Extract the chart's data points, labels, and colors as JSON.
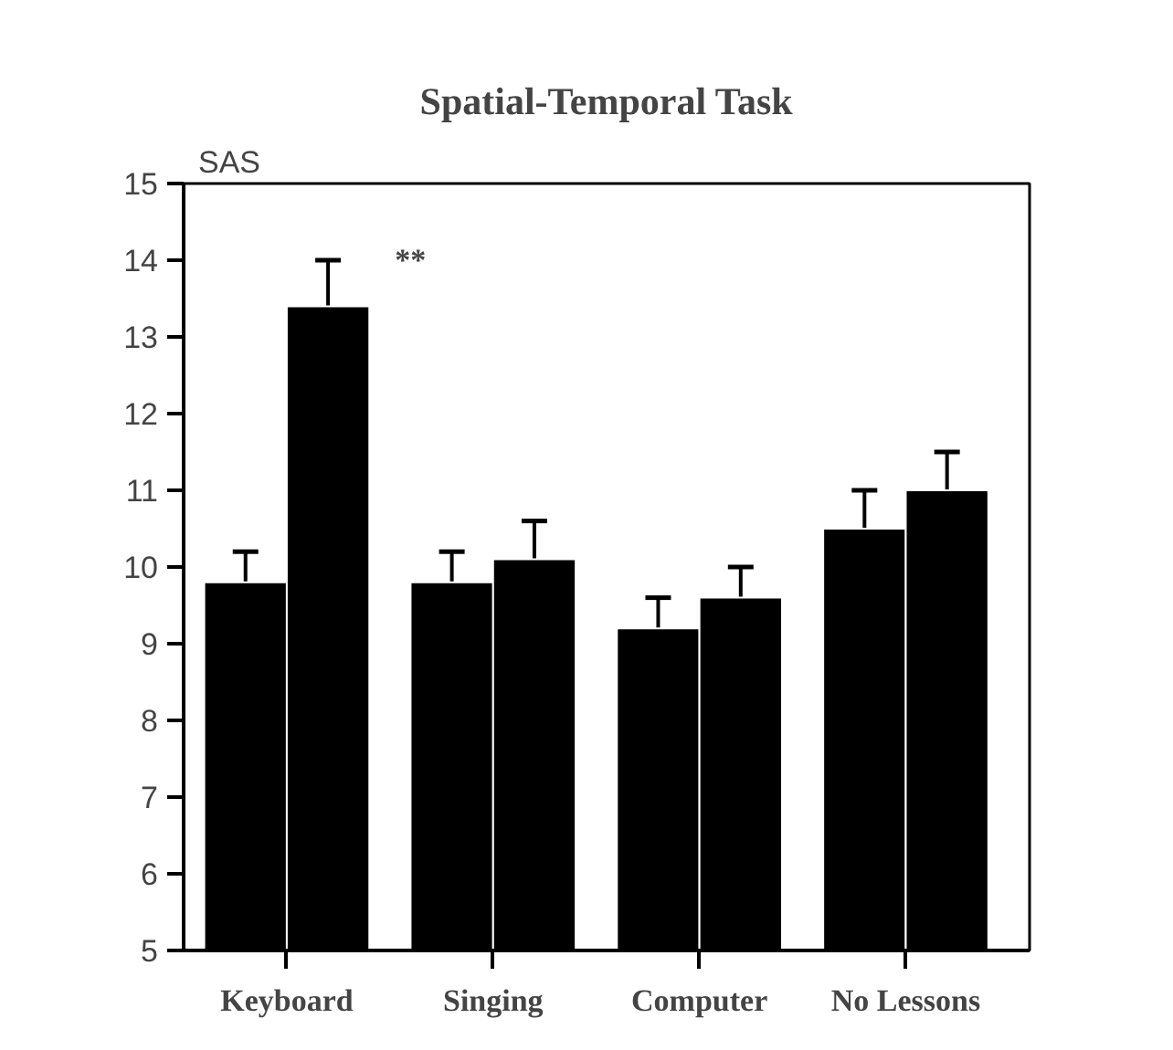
{
  "chart_data": {
    "type": "bar",
    "title": "Spatial-Temporal Task",
    "ylabel": "SAS",
    "categories": [
      "Keyboard",
      "Singing",
      "Computer",
      "No Lessons"
    ],
    "series": [
      {
        "color": "#000000",
        "values": [
          9.8,
          9.8,
          9.2,
          10.5
        ],
        "errors": [
          0.4,
          0.4,
          0.4,
          0.5
        ]
      },
      {
        "color": "#000000",
        "values": [
          13.4,
          10.1,
          9.6,
          11.0
        ],
        "errors": [
          0.6,
          0.5,
          0.4,
          0.5
        ]
      }
    ],
    "ylim": [
      5,
      15
    ],
    "yticks": [
      5,
      6,
      7,
      8,
      9,
      10,
      11,
      12,
      13,
      14,
      15
    ],
    "annotations": [
      "**"
    ]
  }
}
